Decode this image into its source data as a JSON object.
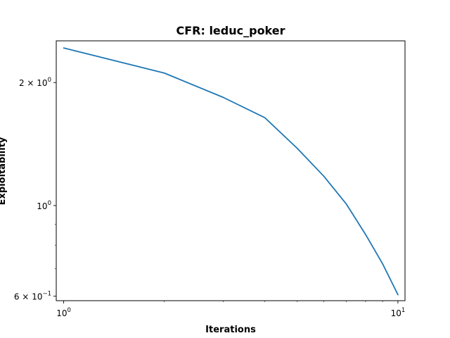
{
  "chart_data": {
    "type": "line",
    "title": "CFR: leduc_poker",
    "xlabel": "Iterations",
    "ylabel": "Exploitability",
    "xscale": "log",
    "yscale": "log",
    "xlim": [
      0.95,
      10.5
    ],
    "ylim": [
      0.585,
      2.53
    ],
    "grid": false,
    "line_color": "#1f77b4",
    "series": [
      {
        "x": [
          1,
          2,
          3,
          4,
          5,
          6,
          7,
          8,
          9,
          10
        ],
        "y": [
          2.43,
          2.11,
          1.84,
          1.64,
          1.38,
          1.18,
          1.01,
          0.85,
          0.72,
          0.605
        ]
      }
    ],
    "x_ticks": [
      {
        "value": 1,
        "base": "10",
        "exp": "0"
      },
      {
        "value": 10,
        "base": "10",
        "exp": "1"
      }
    ],
    "y_ticks": [
      {
        "value": 2.0,
        "prefix": "2 × ",
        "base": "10",
        "exp": "0"
      },
      {
        "value": 1.0,
        "prefix": "",
        "base": "10",
        "exp": "0"
      },
      {
        "value": 0.6,
        "prefix": "6 × ",
        "base": "10",
        "exp": "−1"
      }
    ]
  }
}
